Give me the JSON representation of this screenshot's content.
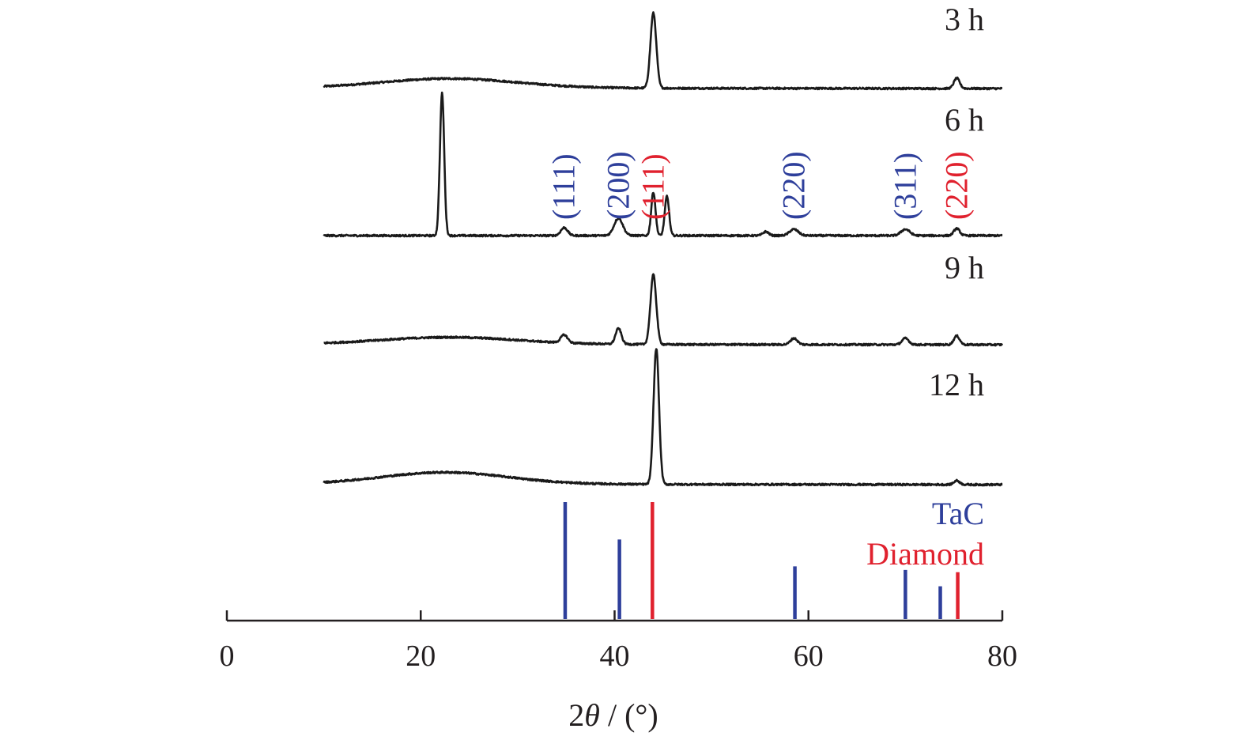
{
  "chart_data": {
    "type": "line",
    "title": "",
    "xlabel": {
      "prefix": "2",
      "symbol": "θ",
      "suffix": " / (°)"
    },
    "ylabel": "",
    "xlim": [
      0,
      80
    ],
    "xticks": [
      0,
      20,
      40,
      60,
      80
    ],
    "xtick_labels": [
      "0",
      "20",
      "40",
      "60",
      "80"
    ],
    "grid": false,
    "x_range_measured": [
      10,
      80
    ],
    "colors": {
      "line": "#1a1a1a",
      "axis": "#231f20",
      "tac": "#2e3f9b",
      "diamond": "#e0212e"
    },
    "series": [
      {
        "name": "3 h",
        "label": "3 h",
        "peaks": [
          {
            "x": 44.0,
            "height": 95,
            "width": 0.3
          },
          {
            "x": 75.3,
            "height": 13,
            "width": 0.3
          }
        ],
        "hump": {
          "center": 23,
          "height": 12,
          "width": 7
        },
        "background_slope": 0.04
      },
      {
        "name": "6 h",
        "label": "6 h",
        "peaks": [
          {
            "x": 22.2,
            "height": 180,
            "width": 0.22
          },
          {
            "x": 34.8,
            "height": 10,
            "width": 0.35
          },
          {
            "x": 40.4,
            "height": 22,
            "width": 0.45
          },
          {
            "x": 44.0,
            "height": 55,
            "width": 0.22
          },
          {
            "x": 45.4,
            "height": 50,
            "width": 0.22
          },
          {
            "x": 55.6,
            "height": 5,
            "width": 0.3
          },
          {
            "x": 58.5,
            "height": 8,
            "width": 0.45
          },
          {
            "x": 70.0,
            "height": 8,
            "width": 0.45
          },
          {
            "x": 75.3,
            "height": 9,
            "width": 0.3
          }
        ],
        "hump": {
          "center": 23,
          "height": 0,
          "width": 7
        },
        "background_slope": 0.0
      },
      {
        "name": "9 h",
        "label": "9 h",
        "peaks": [
          {
            "x": 34.8,
            "height": 10,
            "width": 0.35
          },
          {
            "x": 40.4,
            "height": 20,
            "width": 0.3
          },
          {
            "x": 44.0,
            "height": 88,
            "width": 0.3
          },
          {
            "x": 58.5,
            "height": 8,
            "width": 0.35
          },
          {
            "x": 70.0,
            "height": 8,
            "width": 0.35
          },
          {
            "x": 75.3,
            "height": 11,
            "width": 0.3
          }
        ],
        "hump": {
          "center": 23,
          "height": 9,
          "width": 7
        },
        "background_slope": 0.03
      },
      {
        "name": "12 h",
        "label": "12 h",
        "peaks": [
          {
            "x": 44.3,
            "height": 172,
            "width": 0.28
          },
          {
            "x": 75.3,
            "height": 5,
            "width": 0.3
          }
        ],
        "hump": {
          "center": 22.5,
          "height": 15,
          "width": 6.5
        },
        "background_slope": 0.04
      }
    ],
    "reference_lines": [
      {
        "name": "TaC",
        "x": 34.9,
        "intensity": 100
      },
      {
        "name": "TaC",
        "x": 40.5,
        "intensity": 68
      },
      {
        "name": "TaC",
        "x": 58.6,
        "intensity": 45
      },
      {
        "name": "TaC",
        "x": 70.0,
        "intensity": 42
      },
      {
        "name": "TaC",
        "x": 73.6,
        "intensity": 28
      },
      {
        "name": "Diamond",
        "x": 43.9,
        "intensity": 100
      },
      {
        "name": "Diamond",
        "x": 75.4,
        "intensity": 40
      }
    ],
    "hkl_annotations": [
      {
        "text": "(111)",
        "x": 34.8,
        "phase": "TaC"
      },
      {
        "text": "(200)",
        "x": 40.4,
        "phase": "TaC"
      },
      {
        "text": "(111)",
        "x": 44.0,
        "phase": "Diamond"
      },
      {
        "text": "(220)",
        "x": 58.5,
        "phase": "TaC"
      },
      {
        "text": "(311)",
        "x": 70.0,
        "phase": "TaC"
      },
      {
        "text": "(220)",
        "x": 75.3,
        "phase": "Diamond"
      }
    ],
    "legend": [
      {
        "label": "TaC",
        "color": "#2e3f9b"
      },
      {
        "label": "Diamond",
        "color": "#e0212e"
      }
    ],
    "legend_position": "bottom-right"
  }
}
